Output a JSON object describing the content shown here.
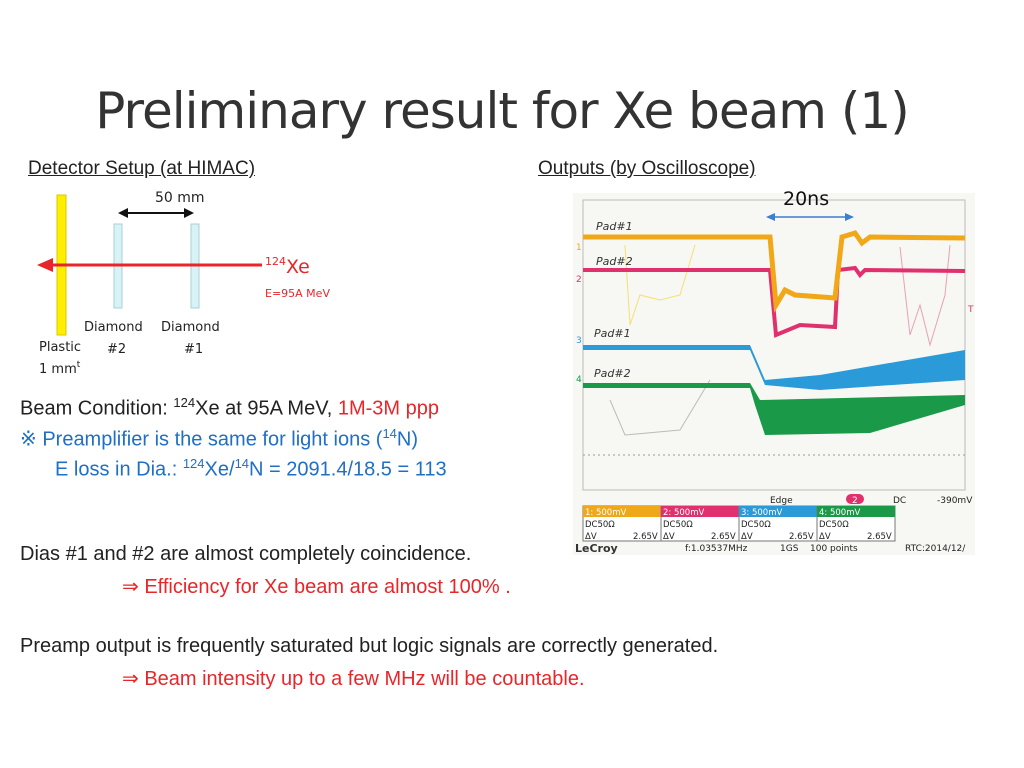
{
  "title": "Preliminary result for Xe beam (1)",
  "left_heading": "Detector Setup (at HIMAC)",
  "right_heading": "Outputs (by Oscilloscope) ",
  "diagram": {
    "distance": "50 mm",
    "beam_mass": "124",
    "beam_element": "Xe",
    "beam_energy": "E=95A MeV",
    "plastic_label": "Plastic",
    "plastic_thickness": "1 mm",
    "plastic_thickness_sup": "t",
    "diamond2_label": "Diamond",
    "diamond2_num": "#2",
    "diamond1_label": "Diamond",
    "diamond1_num": "#1",
    "colors": {
      "plastic": "#ffee00",
      "beam": "#e8262a",
      "diamond": "#d8f3f5"
    }
  },
  "scope": {
    "time_label": "20ns",
    "trace_labels": [
      "Pad#1",
      "Pad#2",
      "Pad#1",
      "Pad#2"
    ],
    "channel_markers": [
      "1",
      "2",
      "3",
      "4"
    ],
    "trigger_marker": "T",
    "trigger": {
      "mode": "Edge",
      "channel": "2",
      "coupling": "DC",
      "level": "-390mV"
    },
    "channels": [
      {
        "scale": "1: 500mV",
        "coupling": "DC50Ω",
        "dv_label": "ΔV",
        "dv": "2.65V",
        "color": "#f0a818"
      },
      {
        "scale": "2: 500mV",
        "coupling": "DC50Ω",
        "dv_label": "ΔV",
        "dv": "2.65V",
        "color": "#e0306e"
      },
      {
        "scale": "3: 500mV",
        "coupling": "DC50Ω",
        "dv_label": "ΔV",
        "dv": "2.65V",
        "color": "#2a9ad8"
      },
      {
        "scale": "4: 500mV",
        "coupling": "DC50Ω",
        "dv_label": "ΔV",
        "dv": "2.65V",
        "color": "#1a9a48"
      }
    ],
    "brand": "LeCroy",
    "freq": "f:1.03537MHz",
    "rate": "1GS",
    "points": "100 points",
    "rtc": "RTC:2014/12/"
  },
  "beam_condition": {
    "prefix": "Beam Condition: ",
    "mass": "124",
    "rest": "Xe at 95A MeV, ",
    "intensity": "1M-3M ppp"
  },
  "note1": {
    "text": "※ Preamplifier is the same for light ions (",
    "sup": "14",
    "end": "N)"
  },
  "note2": {
    "prefix": "E loss in Dia.: ",
    "sup1": "124",
    "mid": "Xe/",
    "sup2": "14",
    "end": "N = 2091.4/18.5 = 113"
  },
  "conclusion1": "Dias #1 and #2 are almost completely coincidence.",
  "conclusion1_result": "⇒ Efficiency for Xe beam are almost 100% .",
  "conclusion2": "Preamp output is frequently saturated but logic signals are correctly generated.",
  "conclusion2_result": "⇒ Beam intensity up to a few MHz will be countable."
}
